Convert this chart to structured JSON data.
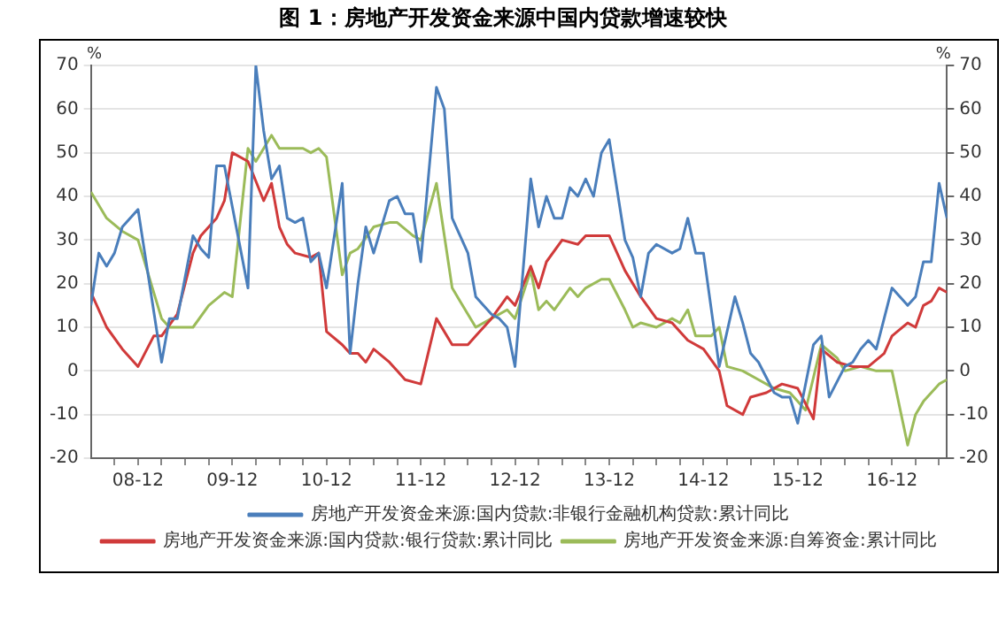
{
  "chart_data": {
    "type": "line",
    "title": "图 1：房地产开发资金来源中国内贷款增速较快",
    "ylabel": "%",
    "y2label": "%",
    "xlim": [
      "2008-06",
      "2017-07"
    ],
    "xticks": [
      {
        "value": "2008-09",
        "label": null
      },
      {
        "value": "2008-12",
        "label": "08-12"
      },
      {
        "value": "2009-03",
        "label": null
      },
      {
        "value": "2009-06",
        "label": null
      },
      {
        "value": "2009-09",
        "label": null
      },
      {
        "value": "2009-12",
        "label": "09-12"
      },
      {
        "value": "2010-03",
        "label": null
      },
      {
        "value": "2010-06",
        "label": null
      },
      {
        "value": "2010-09",
        "label": null
      },
      {
        "value": "2010-12",
        "label": "10-12"
      },
      {
        "value": "2011-03",
        "label": null
      },
      {
        "value": "2011-06",
        "label": null
      },
      {
        "value": "2011-09",
        "label": null
      },
      {
        "value": "2011-12",
        "label": "11-12"
      },
      {
        "value": "2012-03",
        "label": null
      },
      {
        "value": "2012-06",
        "label": null
      },
      {
        "value": "2012-09",
        "label": null
      },
      {
        "value": "2012-12",
        "label": "12-12"
      },
      {
        "value": "2013-03",
        "label": null
      },
      {
        "value": "2013-06",
        "label": null
      },
      {
        "value": "2013-09",
        "label": null
      },
      {
        "value": "2013-12",
        "label": "13-12"
      },
      {
        "value": "2014-03",
        "label": null
      },
      {
        "value": "2014-06",
        "label": null
      },
      {
        "value": "2014-09",
        "label": null
      },
      {
        "value": "2014-12",
        "label": "14-12"
      },
      {
        "value": "2015-03",
        "label": null
      },
      {
        "value": "2015-06",
        "label": null
      },
      {
        "value": "2015-09",
        "label": null
      },
      {
        "value": "2015-12",
        "label": "15-12"
      },
      {
        "value": "2016-03",
        "label": null
      },
      {
        "value": "2016-06",
        "label": null
      },
      {
        "value": "2016-09",
        "label": null
      },
      {
        "value": "2016-12",
        "label": "16-12"
      },
      {
        "value": "2017-03",
        "label": null
      },
      {
        "value": "2017-06",
        "label": null
      }
    ],
    "ylim": [
      -20,
      70
    ],
    "yticks": [
      -20,
      -10,
      0,
      10,
      20,
      30,
      40,
      50,
      60,
      70
    ],
    "y2lim": [
      -20,
      70
    ],
    "y2ticks": [
      -20,
      -10,
      0,
      10,
      20,
      30,
      40,
      50,
      60,
      70
    ],
    "grid": "y",
    "legend": "bottom",
    "marker": "none",
    "line_style": "solid",
    "series": [
      {
        "name": "房地产开发资金来源:国内贷款:非银行金融机构贷款:累计同比",
        "color": "#4a7ebb",
        "x": [
          "2008-06",
          "2008-07",
          "2008-08",
          "2008-09",
          "2008-10",
          "2008-12",
          "2009-03",
          "2009-04",
          "2009-05",
          "2009-07",
          "2009-08",
          "2009-09",
          "2009-10",
          "2009-11",
          "2010-02",
          "2010-03",
          "2010-04",
          "2010-05",
          "2010-06",
          "2010-07",
          "2010-08",
          "2010-09",
          "2010-10",
          "2010-11",
          "2010-12",
          "2011-02",
          "2011-03",
          "2011-04",
          "2011-05",
          "2011-06",
          "2011-08",
          "2011-09",
          "2011-10",
          "2011-11",
          "2011-12",
          "2012-02",
          "2012-03",
          "2012-04",
          "2012-05",
          "2012-06",
          "2012-07",
          "2012-09",
          "2012-10",
          "2012-11",
          "2012-12",
          "2013-02",
          "2013-03",
          "2013-04",
          "2013-05",
          "2013-06",
          "2013-07",
          "2013-08",
          "2013-09",
          "2013-10",
          "2013-11",
          "2013-12",
          "2014-02",
          "2014-03",
          "2014-04",
          "2014-05",
          "2014-06",
          "2014-08",
          "2014-09",
          "2014-10",
          "2014-11",
          "2014-12",
          "2015-02",
          "2015-04",
          "2015-05",
          "2015-06",
          "2015-07",
          "2015-09",
          "2015-10",
          "2015-11",
          "2015-12",
          "2016-02",
          "2016-03",
          "2016-04",
          "2016-06",
          "2016-07",
          "2016-08",
          "2016-09",
          "2016-10",
          "2016-11",
          "2016-12",
          "2017-02",
          "2017-03",
          "2017-04",
          "2017-05",
          "2017-06",
          "2017-07"
        ],
        "values": [
          15,
          27,
          24,
          27,
          33,
          37,
          2,
          12,
          12,
          31,
          28,
          26,
          47,
          47,
          19,
          70,
          55,
          44,
          47,
          35,
          34,
          35,
          25,
          27,
          19,
          43,
          4,
          20,
          33,
          27,
          39,
          40,
          36,
          36,
          25,
          65,
          60,
          35,
          31,
          27,
          17,
          13,
          12,
          10,
          1,
          44,
          33,
          40,
          35,
          35,
          42,
          40,
          44,
          40,
          50,
          53,
          30,
          26,
          17,
          27,
          29,
          27,
          28,
          35,
          27,
          27,
          1,
          17,
          11,
          4,
          2,
          -5,
          -6,
          -6,
          -12,
          6,
          8,
          -6,
          1,
          2,
          5,
          7,
          5,
          12,
          19,
          15,
          17,
          25,
          25,
          43,
          35
        ]
      },
      {
        "name": "房地产开发资金来源:国内贷款:银行贷款:累计同比",
        "color": "#d03a3a",
        "x": [
          "2008-06",
          "2008-08",
          "2008-10",
          "2008-12",
          "2009-02",
          "2009-03",
          "2009-05",
          "2009-07",
          "2009-08",
          "2009-10",
          "2009-11",
          "2009-12",
          "2010-02",
          "2010-04",
          "2010-05",
          "2010-06",
          "2010-07",
          "2010-08",
          "2010-10",
          "2010-11",
          "2010-12",
          "2011-02",
          "2011-03",
          "2011-04",
          "2011-05",
          "2011-06",
          "2011-08",
          "2011-09",
          "2011-10",
          "2011-12",
          "2012-02",
          "2012-04",
          "2012-06",
          "2012-07",
          "2012-09",
          "2012-11",
          "2012-12",
          "2013-02",
          "2013-03",
          "2013-04",
          "2013-06",
          "2013-08",
          "2013-09",
          "2013-12",
          "2014-02",
          "2014-04",
          "2014-06",
          "2014-08",
          "2014-10",
          "2014-12",
          "2015-02",
          "2015-03",
          "2015-05",
          "2015-06",
          "2015-08",
          "2015-10",
          "2015-12",
          "2016-02",
          "2016-03",
          "2016-05",
          "2016-07",
          "2016-09",
          "2016-11",
          "2016-12",
          "2017-02",
          "2017-03",
          "2017-04",
          "2017-05",
          "2017-06",
          "2017-07"
        ],
        "values": [
          18,
          10,
          5,
          1,
          8,
          8,
          13,
          27,
          31,
          35,
          39,
          50,
          48,
          39,
          43,
          33,
          29,
          27,
          26,
          27,
          9,
          6,
          4,
          4,
          2,
          5,
          2,
          0,
          -2,
          -3,
          12,
          6,
          6,
          8,
          12,
          17,
          15,
          24,
          19,
          25,
          30,
          29,
          31,
          31,
          23,
          17,
          12,
          11,
          7,
          5,
          0,
          -8,
          -10,
          -6,
          -5,
          -3,
          -4,
          -11,
          5,
          2,
          1,
          1,
          4,
          8,
          11,
          10,
          15,
          16,
          19,
          18
        ]
      },
      {
        "name": "房地产开发资金来源:自筹资金:累计同比",
        "color": "#9bbb59",
        "x": [
          "2008-06",
          "2008-08",
          "2008-10",
          "2008-12",
          "2009-03",
          "2009-04",
          "2009-07",
          "2009-09",
          "2009-11",
          "2009-12",
          "2010-02",
          "2010-03",
          "2010-05",
          "2010-06",
          "2010-09",
          "2010-10",
          "2010-11",
          "2010-12",
          "2011-02",
          "2011-03",
          "2011-04",
          "2011-06",
          "2011-08",
          "2011-09",
          "2011-11",
          "2011-12",
          "2012-02",
          "2012-04",
          "2012-05",
          "2012-07",
          "2012-09",
          "2012-11",
          "2012-12",
          "2013-02",
          "2013-03",
          "2013-04",
          "2013-05",
          "2013-07",
          "2013-08",
          "2013-09",
          "2013-11",
          "2013-12",
          "2014-02",
          "2014-03",
          "2014-04",
          "2014-06",
          "2014-08",
          "2014-09",
          "2014-10",
          "2014-11",
          "2015-01",
          "2015-02",
          "2015-03",
          "2015-05",
          "2015-07",
          "2015-09",
          "2015-11",
          "2015-12",
          "2016-01",
          "2016-03",
          "2016-05",
          "2016-06",
          "2016-08",
          "2016-10",
          "2016-12",
          "2017-02",
          "2017-03",
          "2017-04",
          "2017-06",
          "2017-07"
        ],
        "values": [
          41,
          35,
          32,
          30,
          12,
          10,
          10,
          15,
          18,
          17,
          51,
          48,
          54,
          51,
          51,
          50,
          51,
          49,
          22,
          27,
          28,
          33,
          34,
          34,
          31,
          30,
          43,
          19,
          16,
          10,
          12,
          14,
          12,
          23,
          14,
          16,
          14,
          19,
          17,
          19,
          21,
          21,
          14,
          10,
          11,
          10,
          12,
          11,
          14,
          8,
          8,
          10,
          1,
          0,
          -2,
          -4,
          -5,
          -7,
          -9,
          6,
          3,
          0,
          1,
          0,
          0,
          -17,
          -10,
          -7,
          -3,
          -2
        ]
      }
    ]
  }
}
